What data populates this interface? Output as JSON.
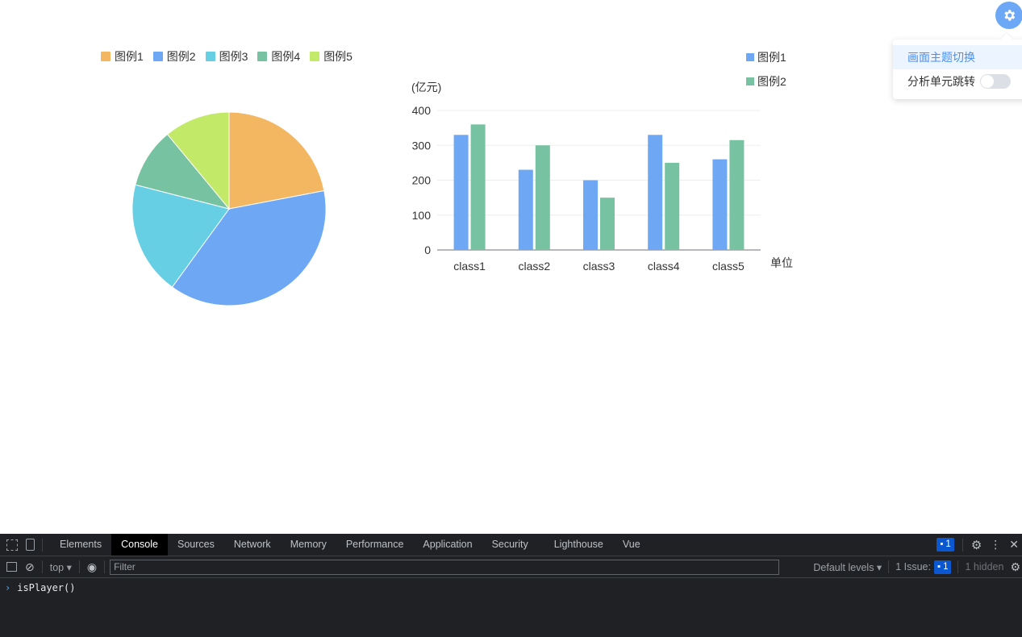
{
  "colors": {
    "legend1": "#f3b661",
    "legend2": "#6ea8f5",
    "legend3": "#67cfe3",
    "legend4": "#77c2a0",
    "legend5": "#c3e969",
    "accent": "#4a90f0"
  },
  "chart_data": [
    {
      "type": "pie",
      "legend": [
        "图例1",
        "图例2",
        "图例3",
        "图例4",
        "图例5"
      ],
      "legend_position": "top",
      "values": [
        22,
        38,
        19,
        10,
        11
      ]
    },
    {
      "type": "bar",
      "categories": [
        "class1",
        "class2",
        "class3",
        "class4",
        "class5"
      ],
      "series": [
        {
          "name": "图例1",
          "values": [
            330,
            230,
            200,
            330,
            260
          ]
        },
        {
          "name": "图例2",
          "values": [
            360,
            300,
            150,
            250,
            315
          ]
        }
      ],
      "ylabel": "(亿元)",
      "xlabel": "单位",
      "ylim": [
        0,
        400
      ],
      "yticks": [
        0,
        100,
        200,
        300,
        400
      ],
      "legend_position": "top-right",
      "grid": true
    }
  ],
  "settings": {
    "items": [
      {
        "label": "画面主题切换",
        "active": true
      },
      {
        "label": "分析单元跳转",
        "toggle": false
      }
    ]
  },
  "devtools": {
    "tabs": [
      "Elements",
      "Console",
      "Sources",
      "Network",
      "Memory",
      "Performance",
      "Application",
      "Security",
      "Lighthouse",
      "Vue"
    ],
    "active_tab": "Console",
    "message_count": "1",
    "context": "top",
    "filter_placeholder": "Filter",
    "levels": "Default levels",
    "issues_label": "1 Issue:",
    "issues_count": "1",
    "hidden": "1 hidden",
    "console_input": "isPlayer()"
  }
}
